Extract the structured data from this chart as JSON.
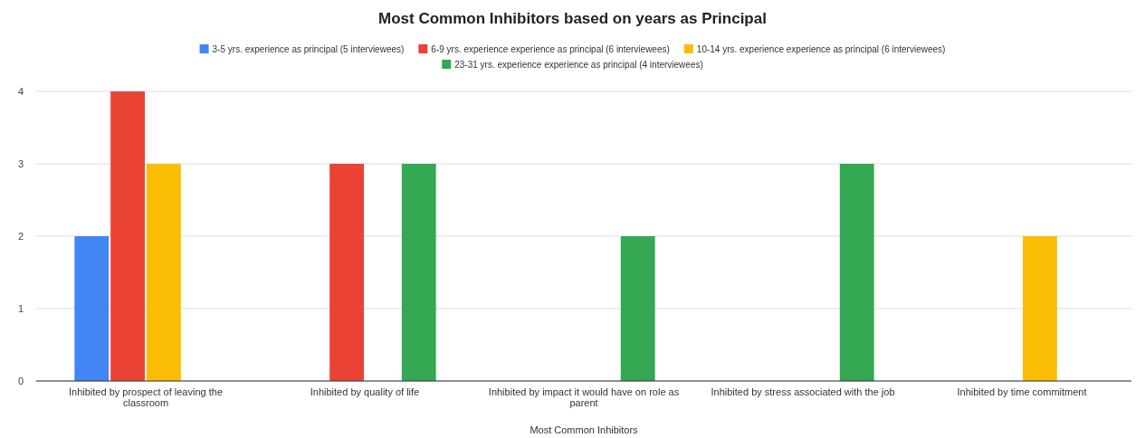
{
  "chart_data": {
    "type": "bar",
    "title": "Most Common Inhibitors based on years as Principal",
    "xlabel": "Most Common Inhibitors",
    "categories": [
      "Inhibited by prospect of leaving the classroom",
      "Inhibited by quality of life",
      "Inhibited by impact it would have on role as parent",
      "Inhibited by stress associated with the job",
      "Inhibited by time commitment"
    ],
    "series": [
      {
        "name": "3-5 yrs. experience as principal (5 interviewees)",
        "color": "#4285f4",
        "values": [
          2,
          null,
          null,
          null,
          null
        ]
      },
      {
        "name": "6-9 yrs. experience experience as principal (6 interviewees)",
        "color": "#ea4335",
        "values": [
          4,
          3,
          null,
          null,
          null
        ]
      },
      {
        "name": "10-14 yrs. experience experience as principal (6 interviewees)",
        "color": "#fbbc04",
        "values": [
          3,
          null,
          null,
          null,
          2
        ]
      },
      {
        "name": "23-31 yrs. experience experience as principal (4 interviewees)",
        "color": "#34a853",
        "values": [
          null,
          3,
          2,
          3,
          null
        ]
      }
    ],
    "ylim": [
      0,
      4
    ],
    "yticks": [
      0,
      1,
      2,
      3,
      4
    ],
    "grid": "y",
    "legend": "top"
  }
}
